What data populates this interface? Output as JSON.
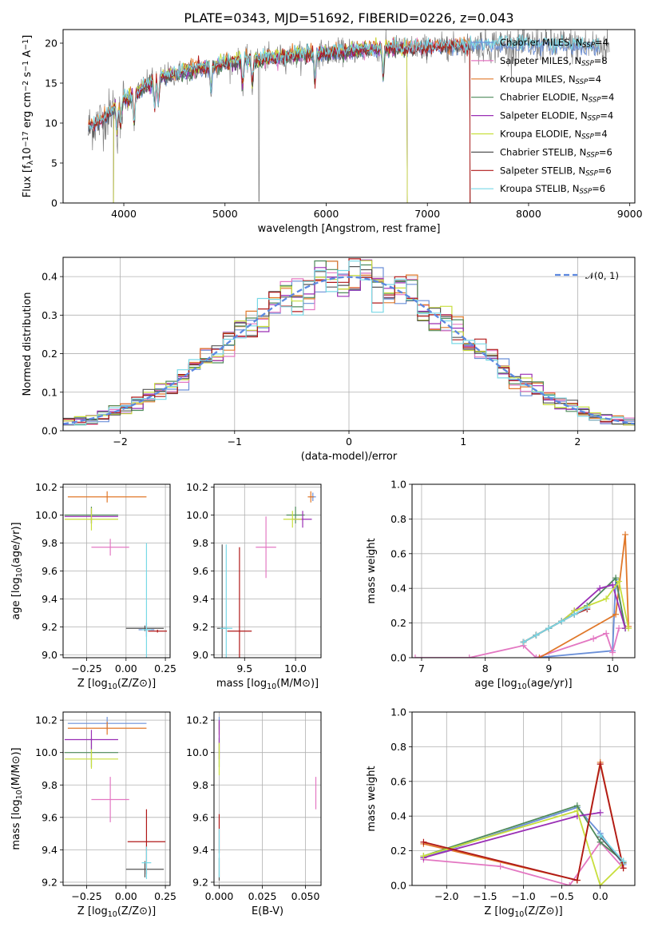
{
  "title": "PLATE=0343, MJD=51692, FIBERID=0226, z=0.043",
  "colors": {
    "Chabrier MILES": "#6a8fd8",
    "Salpeter MILES": "#e377c2",
    "Kroupa MILES": "#e0782a",
    "Chabrier ELODIE": "#4e8a5a",
    "Salpeter ELODIE": "#9a2fb5",
    "Kroupa ELODIE": "#c8de3c",
    "Chabrier STELIB": "#555555",
    "Salpeter STELIB": "#b01818",
    "Kroupa STELIB": "#78d8e6"
  },
  "chart_data": [
    {
      "type": "line",
      "id": "spectrum",
      "xlabel": "wavelength [Angstrom, rest frame]",
      "ylabel": "Flux [f_λ10^-17 erg cm^-2 s^-1 A^-1]",
      "xlim": [
        3400,
        9050
      ],
      "ylim": [
        0,
        21.7
      ],
      "xticks": [
        4000,
        5000,
        6000,
        7000,
        8000,
        9000
      ],
      "yticks": [
        0,
        5,
        10,
        15,
        20
      ],
      "grid": false,
      "legend": "top-right",
      "legend_entries": [
        {
          "model": "Chabrier MILES",
          "name": "Chabrier MILES, N",
          "sub": "SSP",
          "suffix": "=4"
        },
        {
          "model": "Salpeter MILES",
          "name": "Salpeter MILES, N",
          "sub": "SSP",
          "suffix": "=8"
        },
        {
          "model": "Kroupa MILES",
          "name": "Kroupa MILES, N",
          "sub": "SSP",
          "suffix": "=4"
        },
        {
          "model": "Chabrier ELODIE",
          "name": "Chabrier ELODIE, N",
          "sub": "SSP",
          "suffix": "=4"
        },
        {
          "model": "Salpeter ELODIE",
          "name": "Salpeter ELODIE, N",
          "sub": "SSP",
          "suffix": "=4"
        },
        {
          "model": "Kroupa ELODIE",
          "name": "Kroupa ELODIE, N",
          "sub": "SSP",
          "suffix": "=4"
        },
        {
          "model": "Chabrier STELIB",
          "name": "Chabrier STELIB, N",
          "sub": "SSP",
          "suffix": "=6"
        },
        {
          "model": "Salpeter STELIB",
          "name": "Salpeter STELIB, N",
          "sub": "SSP",
          "suffix": "=6"
        },
        {
          "model": "Kroupa STELIB",
          "name": "Kroupa STELIB, N",
          "sub": "SSP",
          "suffix": "=6"
        }
      ],
      "data_color": "#808080",
      "data_range": [
        3650,
        8800
      ],
      "continuum": [
        [
          3650,
          9.5
        ],
        [
          3800,
          10.5
        ],
        [
          3950,
          12.5
        ],
        [
          4100,
          13.5
        ],
        [
          4300,
          15.5
        ],
        [
          4600,
          16.5
        ],
        [
          5000,
          17.5
        ],
        [
          5500,
          18.2
        ],
        [
          6000,
          18.8
        ],
        [
          6500,
          19.3
        ],
        [
          7000,
          19.5
        ],
        [
          7500,
          19.8
        ],
        [
          8000,
          19.8
        ],
        [
          8500,
          19.7
        ],
        [
          8800,
          19.5
        ]
      ],
      "model_ranges": {
        "Chabrier MILES": [
          3650,
          8700
        ],
        "Salpeter MILES": [
          3650,
          7420
        ],
        "Kroupa MILES": [
          3650,
          7420
        ],
        "Chabrier ELODIE": [
          3900,
          6800
        ],
        "Salpeter ELODIE": [
          3900,
          6800
        ],
        "Kroupa ELODIE": [
          3900,
          6800
        ],
        "Chabrier STELIB": [
          3650,
          7420
        ],
        "Salpeter STELIB": [
          3650,
          7420
        ],
        "Kroupa STELIB": [
          3650,
          8700
        ]
      }
    },
    {
      "type": "line",
      "id": "residuals",
      "xlabel": "(data-model)/error",
      "ylabel": "Normed distribution",
      "xlim": [
        -2.5,
        2.5
      ],
      "ylim": [
        0,
        0.45
      ],
      "xticks": [
        -2,
        -1,
        0,
        1,
        2
      ],
      "yticks": [
        0.0,
        0.1,
        0.2,
        0.3,
        0.4
      ],
      "grid": true,
      "legend": "top-right",
      "reference_label": "𝒩(0, 1)",
      "reference_color": "#5c88e0",
      "bin_width": 0.1
    },
    {
      "type": "scatter",
      "id": "age_vs_Z",
      "xlabel": "Z [log10(Z/Z⊙)]",
      "ylabel": "age  [log10(age/yr)]",
      "xlim": [
        -0.4,
        0.28
      ],
      "ylim": [
        8.98,
        10.22
      ],
      "xticks": [
        -0.25,
        0.0,
        0.25
      ],
      "yticks": [
        9.0,
        9.2,
        9.4,
        9.6,
        9.8,
        10.0,
        10.2
      ],
      "grid": true,
      "points": [
        {
          "model": "Chabrier MILES",
          "x": 0.13,
          "y": 9.18,
          "xerr": 0.05,
          "yerr": 0.05
        },
        {
          "model": "Salpeter MILES",
          "x": -0.1,
          "y": 9.77,
          "xerr": 0.12,
          "yerr": 0.06
        },
        {
          "model": "Kroupa MILES",
          "x": -0.12,
          "y": 10.13,
          "xerr": 0.25,
          "yerr": 0.04
        },
        {
          "model": "Chabrier ELODIE",
          "x": -0.22,
          "y": 10.0,
          "xerr": 0.17,
          "yerr": 0.06
        },
        {
          "model": "Salpeter ELODIE",
          "x": -0.22,
          "y": 9.99,
          "xerr": 0.17,
          "yerr": 0.05
        },
        {
          "model": "Kroupa ELODIE",
          "x": -0.22,
          "y": 9.97,
          "xerr": 0.17,
          "yerr": 0.08
        },
        {
          "model": "Chabrier STELIB",
          "x": 0.12,
          "y": 9.19,
          "xerr": 0.12,
          "yerr": 0.02
        },
        {
          "model": "Salpeter STELIB",
          "x": 0.2,
          "y": 9.17,
          "xerr": 0.06,
          "yerr": 0.01
        },
        {
          "model": "Kroupa STELIB",
          "x": 0.13,
          "y": 9.18,
          "xerr": 0.03,
          "yerr": 0.62
        }
      ]
    },
    {
      "type": "scatter",
      "id": "age_vs_mass",
      "xlabel": "mass [log10(M/M⊙)]",
      "ylabel": "",
      "xlim": [
        9.2,
        10.25
      ],
      "ylim": [
        8.98,
        10.22
      ],
      "xticks": [
        9.5,
        10.0
      ],
      "yticks": [
        9.0,
        9.2,
        9.4,
        9.6,
        9.8,
        10.0,
        10.2
      ],
      "grid": true,
      "points": [
        {
          "model": "Chabrier MILES",
          "x": 10.17,
          "y": 10.13,
          "xerr": 0.03,
          "yerr": 0.03
        },
        {
          "model": "Salpeter MILES",
          "x": 9.71,
          "y": 9.77,
          "xerr": 0.1,
          "yerr": 0.22
        },
        {
          "model": "Kroupa MILES",
          "x": 10.15,
          "y": 10.13,
          "xerr": 0.03,
          "yerr": 0.04
        },
        {
          "model": "Chabrier ELODIE",
          "x": 10.0,
          "y": 10.0,
          "xerr": 0.09,
          "yerr": 0.06
        },
        {
          "model": "Salpeter ELODIE",
          "x": 10.07,
          "y": 9.97,
          "xerr": 0.09,
          "yerr": 0.06
        },
        {
          "model": "Kroupa ELODIE",
          "x": 9.97,
          "y": 9.97,
          "xerr": 0.09,
          "yerr": 0.06
        },
        {
          "model": "Chabrier STELIB",
          "x": 9.28,
          "y": 9.19,
          "xerr": 0.05,
          "yerr": 0.6
        },
        {
          "model": "Salpeter STELIB",
          "x": 9.45,
          "y": 9.17,
          "xerr": 0.12,
          "yerr": 0.6
        },
        {
          "model": "Kroupa STELIB",
          "x": 9.32,
          "y": 9.19,
          "xerr": 0.06,
          "yerr": 0.6
        }
      ]
    },
    {
      "type": "line",
      "id": "massweight_vs_age",
      "xlabel": "age  [log10(age/yr)]",
      "ylabel": "mass weight",
      "xlim": [
        6.85,
        10.35
      ],
      "ylim": [
        0,
        1
      ],
      "xticks": [
        7,
        8,
        9,
        10
      ],
      "yticks": [
        0.0,
        0.2,
        0.4,
        0.6,
        0.8,
        1.0
      ],
      "grid": true,
      "series": [
        {
          "model": "Chabrier MILES",
          "x": [
            8.8,
            10.0,
            10.05,
            10.2
          ],
          "y": [
            0.0,
            0.04,
            0.45,
            0.17
          ]
        },
        {
          "model": "Salpeter MILES",
          "x": [
            6.9,
            7.75,
            8.6,
            8.8,
            9.7,
            9.9,
            10.0,
            10.1
          ],
          "y": [
            0.0,
            0.0,
            0.07,
            0.0,
            0.11,
            0.14,
            0.03,
            0.17
          ]
        },
        {
          "model": "Kroupa MILES",
          "x": [
            8.85,
            10.05,
            10.2,
            10.25
          ],
          "y": [
            0.0,
            0.25,
            0.71,
            0.18
          ]
        },
        {
          "model": "Chabrier ELODIE",
          "x": [
            8.6,
            8.8,
            9.0,
            9.2,
            9.4,
            9.6,
            10.05,
            10.2
          ],
          "y": [
            0.09,
            0.13,
            0.17,
            0.21,
            0.27,
            0.3,
            0.46,
            0.17
          ]
        },
        {
          "model": "Salpeter ELODIE",
          "x": [
            8.6,
            8.8,
            9.0,
            9.2,
            9.4,
            9.8,
            10.0,
            10.2
          ],
          "y": [
            0.09,
            0.13,
            0.17,
            0.21,
            0.27,
            0.4,
            0.42,
            0.17
          ]
        },
        {
          "model": "Kroupa ELODIE",
          "x": [
            8.6,
            8.8,
            9.0,
            9.2,
            9.4,
            9.9,
            10.1,
            10.25
          ],
          "y": [
            0.09,
            0.13,
            0.17,
            0.21,
            0.27,
            0.34,
            0.44,
            0.17
          ]
        },
        {
          "model": "Chabrier STELIB",
          "x": [
            8.6,
            8.8,
            9.0,
            9.2,
            9.4,
            9.6
          ],
          "y": [
            0.09,
            0.13,
            0.17,
            0.21,
            0.25,
            0.29
          ]
        },
        {
          "model": "Salpeter STELIB",
          "x": [
            8.6,
            8.8,
            9.0,
            9.2,
            9.4,
            9.6
          ],
          "y": [
            0.09,
            0.13,
            0.17,
            0.21,
            0.25,
            0.28
          ]
        },
        {
          "model": "Kroupa STELIB",
          "x": [
            8.6,
            8.8,
            9.0,
            9.2,
            9.4,
            9.6
          ],
          "y": [
            0.09,
            0.13,
            0.17,
            0.21,
            0.25,
            0.29
          ]
        }
      ]
    },
    {
      "type": "scatter",
      "id": "mass_vs_Z",
      "xlabel": "Z [log10(Z/Z⊙)]",
      "ylabel": "mass [log10(M/M⊙)]",
      "xlim": [
        -0.4,
        0.28
      ],
      "ylim": [
        9.18,
        10.25
      ],
      "xticks": [
        -0.25,
        0.0,
        0.25
      ],
      "yticks": [
        9.2,
        9.4,
        9.6,
        9.8,
        10.0,
        10.2
      ],
      "grid": true,
      "points": [
        {
          "model": "Chabrier MILES",
          "x": -0.12,
          "y": 10.18,
          "xerr": 0.25,
          "yerr": 0.04
        },
        {
          "model": "Salpeter MILES",
          "x": -0.1,
          "y": 9.71,
          "xerr": 0.12,
          "yerr": 0.14
        },
        {
          "model": "Kroupa MILES",
          "x": -0.12,
          "y": 10.15,
          "xerr": 0.25,
          "yerr": 0.04
        },
        {
          "model": "Chabrier ELODIE",
          "x": -0.22,
          "y": 10.0,
          "xerr": 0.17,
          "yerr": 0.09
        },
        {
          "model": "Salpeter ELODIE",
          "x": -0.22,
          "y": 10.08,
          "xerr": 0.17,
          "yerr": 0.06
        },
        {
          "model": "Kroupa ELODIE",
          "x": -0.22,
          "y": 9.96,
          "xerr": 0.17,
          "yerr": 0.06
        },
        {
          "model": "Chabrier STELIB",
          "x": 0.12,
          "y": 9.28,
          "xerr": 0.12,
          "yerr": 0.05
        },
        {
          "model": "Salpeter STELIB",
          "x": 0.13,
          "y": 9.45,
          "xerr": 0.12,
          "yerr": 0.2
        },
        {
          "model": "Kroupa STELIB",
          "x": 0.13,
          "y": 9.32,
          "xerr": 0.03,
          "yerr": 0.1
        }
      ]
    },
    {
      "type": "scatter",
      "id": "mass_vs_ebv",
      "xlabel": "E(B-V)",
      "ylabel": "",
      "xlim": [
        -0.003,
        0.059
      ],
      "ylim": [
        9.18,
        10.25
      ],
      "xticks": [
        0.0,
        0.025,
        0.05
      ],
      "yticks": [
        9.2,
        9.4,
        9.6,
        9.8,
        10.0,
        10.2
      ],
      "grid": true,
      "points": [
        {
          "model": "Chabrier MILES",
          "x": 0.0,
          "y": 10.18,
          "xerr": 0.0,
          "yerr": 0.04
        },
        {
          "model": "Salpeter MILES",
          "x": 0.056,
          "y": 9.75,
          "xerr": 0.0,
          "yerr": 0.1
        },
        {
          "model": "Kroupa MILES",
          "x": 0.0,
          "y": 10.15,
          "xerr": 0.0,
          "yerr": 0.04
        },
        {
          "model": "Chabrier ELODIE",
          "x": 0.0,
          "y": 10.0,
          "xerr": 0.0,
          "yerr": 0.09
        },
        {
          "model": "Salpeter ELODIE",
          "x": 0.0,
          "y": 10.08,
          "xerr": 0.0,
          "yerr": 0.12
        },
        {
          "model": "Kroupa ELODIE",
          "x": 0.0,
          "y": 9.96,
          "xerr": 0.0,
          "yerr": 0.1
        },
        {
          "model": "Chabrier STELIB",
          "x": 0.0,
          "y": 9.28,
          "xerr": 0.0,
          "yerr": 0.07
        },
        {
          "model": "Salpeter STELIB",
          "x": 0.0,
          "y": 9.5,
          "xerr": 0.0,
          "yerr": 0.12
        },
        {
          "model": "Kroupa STELIB",
          "x": 0.0,
          "y": 9.38,
          "xerr": 0.0,
          "yerr": 0.15
        }
      ]
    },
    {
      "type": "line",
      "id": "massweight_vs_Z",
      "xlabel": "Z [log10(Z/Z⊙)]",
      "ylabel": "mass weight",
      "xlim": [
        -2.45,
        0.45
      ],
      "ylim": [
        0,
        1
      ],
      "xticks": [
        -2.0,
        -1.5,
        -1.0,
        -0.5,
        0.0
      ],
      "yticks": [
        0.0,
        0.2,
        0.4,
        0.6,
        0.8,
        1.0
      ],
      "grid": true,
      "series": [
        {
          "model": "Chabrier MILES",
          "x": [
            -2.3,
            -0.3,
            0.0,
            0.3
          ],
          "y": [
            0.16,
            0.45,
            0.3,
            0.12
          ]
        },
        {
          "model": "Salpeter MILES",
          "x": [
            -2.3,
            -1.3,
            -0.4,
            0.0,
            0.3
          ],
          "y": [
            0.15,
            0.11,
            0.0,
            0.25,
            0.1
          ]
        },
        {
          "model": "Kroupa MILES",
          "x": [
            -2.3,
            -0.3,
            0.0,
            0.3
          ],
          "y": [
            0.24,
            0.03,
            0.71,
            0.1
          ]
        },
        {
          "model": "Chabrier ELODIE",
          "x": [
            -2.3,
            -0.3,
            0.0,
            0.3
          ],
          "y": [
            0.17,
            0.46,
            0.25,
            0.14
          ]
        },
        {
          "model": "Salpeter ELODIE",
          "x": [
            -2.3,
            -0.3,
            0.0
          ],
          "y": [
            0.16,
            0.4,
            0.42
          ]
        },
        {
          "model": "Kroupa ELODIE",
          "x": [
            -2.3,
            -0.3,
            0.0,
            0.3
          ],
          "y": [
            0.17,
            0.43,
            0.0,
            0.13
          ]
        },
        {
          "model": "Chabrier STELIB",
          "x": [
            0.0,
            0.3
          ],
          "y": [
            0.28,
            0.13
          ]
        },
        {
          "model": "Salpeter STELIB",
          "x": [
            -2.3,
            -0.3,
            0.0,
            0.3
          ],
          "y": [
            0.25,
            0.03,
            0.7,
            0.1
          ]
        },
        {
          "model": "Kroupa STELIB",
          "x": [
            0.0,
            0.3
          ],
          "y": [
            0.29,
            0.14
          ]
        }
      ]
    }
  ]
}
